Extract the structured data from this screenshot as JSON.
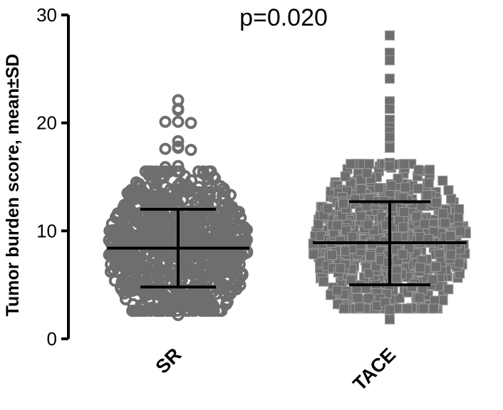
{
  "chart_data": {
    "type": "scatter",
    "subtype": "dot-plot-with-mean-sd",
    "title": "",
    "annotation": "p=0.020",
    "ylabel": "Tumor burden score, mean±SD",
    "xlabel": "",
    "ylim": [
      0,
      30
    ],
    "yticks": [
      "0",
      "10",
      "20",
      "30"
    ],
    "categories": [
      "SR",
      "TACE"
    ],
    "colors": {
      "points": "#6e6e6e",
      "summary": "#000000",
      "axis": "#000000"
    },
    "series": [
      {
        "name": "SR",
        "marker": "circle",
        "mean": 8.4,
        "sd_lower": 4.8,
        "sd_upper": 12.0,
        "highlighted_values": [
          22.1,
          21.3,
          21.2,
          20.1,
          20.1,
          20.0,
          18.3,
          17.8,
          17.7,
          17.6,
          17.5,
          16.0,
          15.9,
          14.2,
          14.1,
          13.6,
          3.2,
          3.0,
          2.9,
          2.9,
          2.2,
          3.5
        ]
      },
      {
        "name": "TACE",
        "marker": "square",
        "mean": 8.9,
        "sd_lower": 5.0,
        "sd_upper": 12.7,
        "highlighted_values": [
          28.1,
          26.5,
          25.8,
          24.1,
          22.0,
          21.3,
          20.3,
          19.6,
          19.2,
          18.7,
          17.8,
          17.7,
          16.3,
          16.0,
          2.7,
          1.8
        ]
      }
    ]
  }
}
